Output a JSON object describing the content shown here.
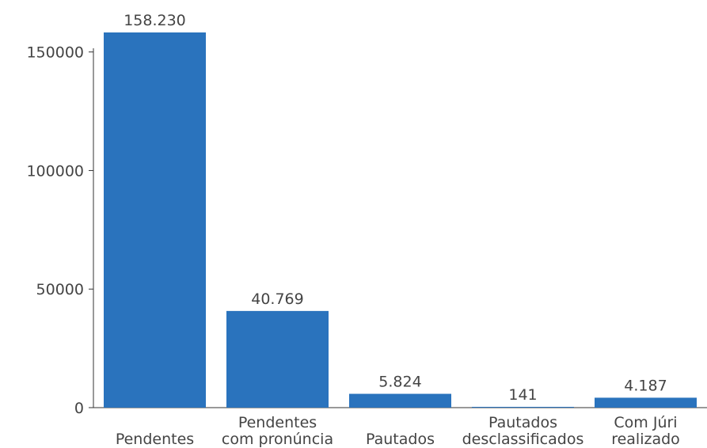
{
  "chart_data": {
    "type": "bar",
    "title": "",
    "xlabel": "",
    "ylabel": "",
    "categories": [
      [
        "Pendentes"
      ],
      [
        "Pendentes",
        "com pronúncia"
      ],
      [
        "Pautados"
      ],
      [
        "Pautados",
        "desclassificados"
      ],
      [
        "Com Júri",
        "realizado"
      ]
    ],
    "values": [
      158230,
      40769,
      5824,
      141,
      4187
    ],
    "value_labels": [
      "158.230",
      "40.769",
      "5.824",
      "141",
      "4.187"
    ],
    "ylim": [
      0,
      158230
    ],
    "yticks": [
      0,
      50000,
      100000,
      150000
    ],
    "ytick_labels": [
      "0",
      "50000",
      "100000",
      "150000"
    ],
    "grid": false,
    "legend": "none",
    "colors": {
      "bar": "#2a73bd",
      "axis": "#333333",
      "text": "#444444"
    }
  }
}
